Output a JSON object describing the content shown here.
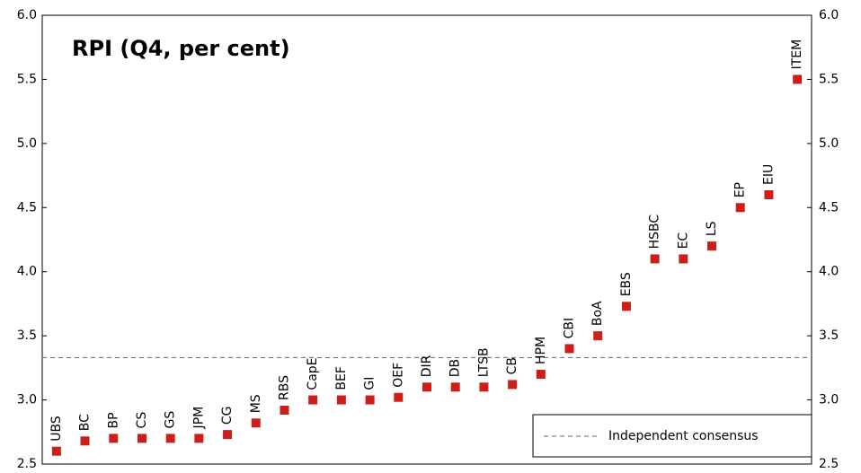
{
  "chart_data": {
    "type": "dot",
    "title": "RPI (Q4, per cent)",
    "categories": [
      "UBS",
      "BC",
      "BP",
      "CS",
      "GS",
      "JPM",
      "CG",
      "MS",
      "RBS",
      "CapE",
      "BEF",
      "GI",
      "OEF",
      "DIR",
      "DB",
      "LTSB",
      "CB",
      "HPM",
      "CBI",
      "BoA",
      "EBS",
      "HSBC",
      "EC",
      "LS",
      "EP",
      "EIU",
      "ITEM"
    ],
    "values": [
      2.6,
      2.68,
      2.7,
      2.7,
      2.7,
      2.7,
      2.73,
      2.82,
      2.92,
      3.0,
      3.0,
      3.0,
      3.02,
      3.1,
      3.1,
      3.1,
      3.12,
      3.2,
      3.4,
      3.5,
      3.73,
      4.1,
      4.1,
      4.2,
      4.5,
      4.6,
      5.5
    ],
    "color": "#cc1f1a",
    "reference_line": {
      "name": "Independent consensus",
      "value": 3.33,
      "color": "#666666"
    },
    "ylim": [
      2.5,
      6.0
    ],
    "yticks": [
      {
        "value": 2.5,
        "label": "2.5"
      },
      {
        "value": 3,
        "label": "3.0"
      },
      {
        "value": 3.5,
        "label": "3.5"
      },
      {
        "value": 4,
        "label": "4.0"
      },
      {
        "value": 4.5,
        "label": "4.5"
      },
      {
        "value": 5,
        "label": "5.0"
      },
      {
        "value": 5.5,
        "label": "5.5"
      },
      {
        "value": 6,
        "label": "6.0"
      }
    ],
    "y2lim": [
      2.5,
      6.0
    ],
    "y2ticks": [
      {
        "value": 2.5,
        "label": "2.5"
      },
      {
        "value": 3,
        "label": "3.0"
      },
      {
        "value": 3.5,
        "label": "3.5"
      },
      {
        "value": 4,
        "label": "4.0"
      },
      {
        "value": 4.5,
        "label": "4.5"
      },
      {
        "value": 5,
        "label": "5.0"
      },
      {
        "value": 5.5,
        "label": "5.5"
      },
      {
        "value": 6,
        "label": "6.0"
      }
    ],
    "legend_position": "lower right"
  }
}
